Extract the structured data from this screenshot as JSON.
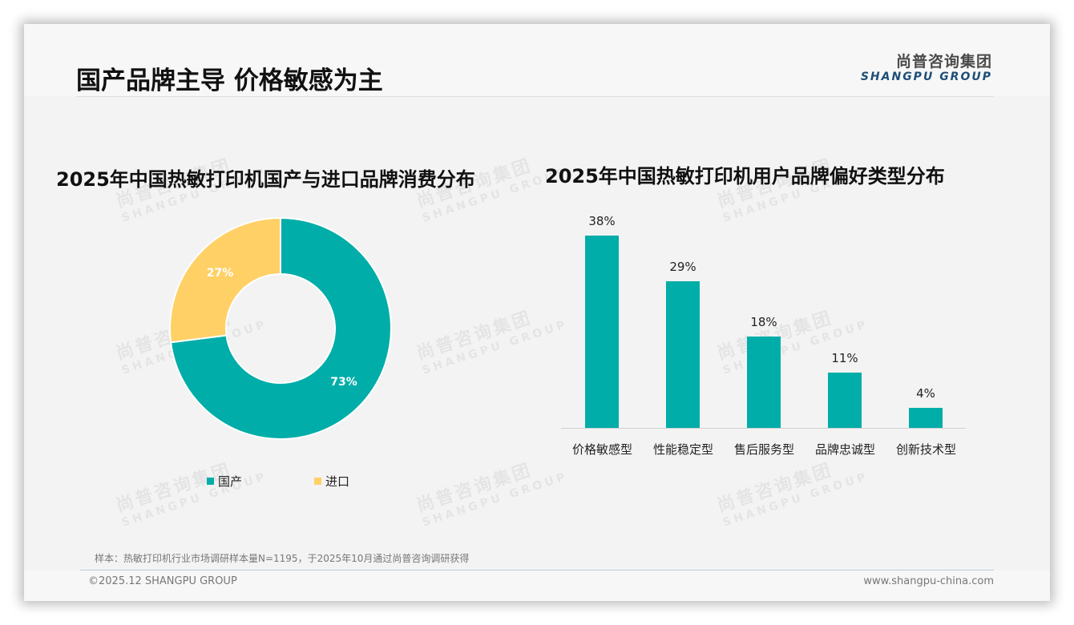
{
  "header": {
    "title": "国产品牌主导 价格敏感为主",
    "logo_cn": "尚普咨询集团",
    "logo_en": "SHANGPU GROUP"
  },
  "watermark": {
    "cn": "尚普咨询集团",
    "en": "SHANGPU GROUP"
  },
  "colors": {
    "primary": "#00ada8",
    "secondary": "#ffd066",
    "logo_blue": "#1f4e79"
  },
  "donut": {
    "title": "2025年中国热敏打印机国产与进口品牌消费分布",
    "slices": [
      {
        "label": "国产",
        "value": 73,
        "display": "73%",
        "color": "#00ada8"
      },
      {
        "label": "进口",
        "value": 27,
        "display": "27%",
        "color": "#ffd066"
      }
    ]
  },
  "bars": {
    "title": "2025年中国热敏打印机用户品牌偏好类型分布",
    "items": [
      {
        "label": "价格敏感型",
        "value": 38,
        "display": "38%"
      },
      {
        "label": "性能稳定型",
        "value": 29,
        "display": "29%"
      },
      {
        "label": "售后服务型",
        "value": 18,
        "display": "18%"
      },
      {
        "label": "品牌忠诚型",
        "value": 11,
        "display": "11%"
      },
      {
        "label": "创新技术型",
        "value": 4,
        "display": "4%"
      }
    ]
  },
  "footer": {
    "note": "样本：热敏打印机行业市场调研样本量N=1195，于2025年10月通过尚普咨询调研获得",
    "copyright": "©2025.12 SHANGPU GROUP",
    "website": "www.shangpu-china.com"
  },
  "chart_data": [
    {
      "type": "pie",
      "title": "2025年中国热敏打印机国产与进口品牌消费分布",
      "categories": [
        "国产",
        "进口"
      ],
      "values": [
        73,
        27
      ],
      "unit": "%",
      "donut": true,
      "legend_position": "bottom"
    },
    {
      "type": "bar",
      "title": "2025年中国热敏打印机用户品牌偏好类型分布",
      "categories": [
        "价格敏感型",
        "性能稳定型",
        "售后服务型",
        "品牌忠诚型",
        "创新技术型"
      ],
      "values": [
        38,
        29,
        18,
        11,
        4
      ],
      "unit": "%",
      "xlabel": "",
      "ylabel": "",
      "ylim": [
        0,
        40
      ],
      "grid": false,
      "data_labels": true
    }
  ]
}
